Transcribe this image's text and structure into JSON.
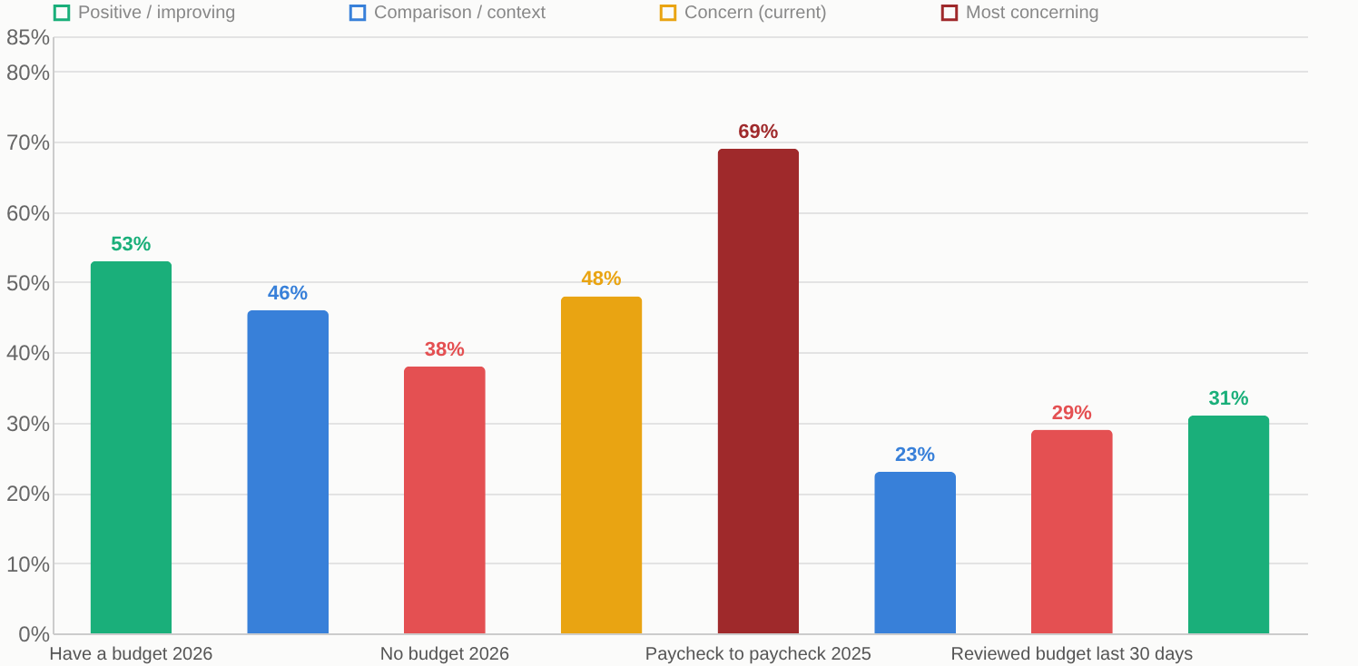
{
  "chart_data": {
    "type": "bar",
    "categories": [
      "Have a budget 2026",
      null,
      "No budget 2026",
      null,
      "Paycheck to paycheck 2025",
      null,
      "Reviewed budget last 30 days",
      null
    ],
    "series": [
      {
        "name": "Positive / improving",
        "color": "#1aaf7a",
        "values": [
          53,
          null,
          null,
          null,
          null,
          null,
          null,
          31
        ]
      },
      {
        "name": "Comparison / context",
        "color": "#3880d9",
        "values": [
          null,
          46,
          null,
          null,
          null,
          23,
          null,
          null
        ]
      },
      {
        "name": "Concern (current)",
        "color": "#e9a412",
        "values": [
          null,
          null,
          null,
          48,
          null,
          null,
          null,
          null
        ]
      },
      {
        "name": "Most concerning",
        "color": "#9f292b",
        "values": [
          null,
          null,
          null,
          null,
          69,
          null,
          null,
          null
        ]
      },
      {
        "color": "#e45052",
        "values": [
          null,
          null,
          38,
          null,
          null,
          null,
          29,
          null
        ]
      }
    ],
    "ylim": [
      0,
      85
    ],
    "yticks": [
      {
        "value": 0,
        "label": "0%"
      },
      {
        "value": 10,
        "label": "10%"
      },
      {
        "value": 20,
        "label": "20%"
      },
      {
        "value": 30,
        "label": "30%"
      },
      {
        "value": 40,
        "label": "40%"
      },
      {
        "value": 50,
        "label": "50%"
      },
      {
        "value": 60,
        "label": "60%"
      },
      {
        "value": 70,
        "label": "70%"
      },
      {
        "value": 80,
        "label": "80%"
      },
      {
        "value": 85,
        "label": "85%"
      }
    ],
    "grid": "y",
    "legend": "top",
    "value_labels": [
      "53%",
      "46%",
      "38%",
      "48%",
      "69%",
      "23%",
      "29%",
      "31%"
    ]
  }
}
